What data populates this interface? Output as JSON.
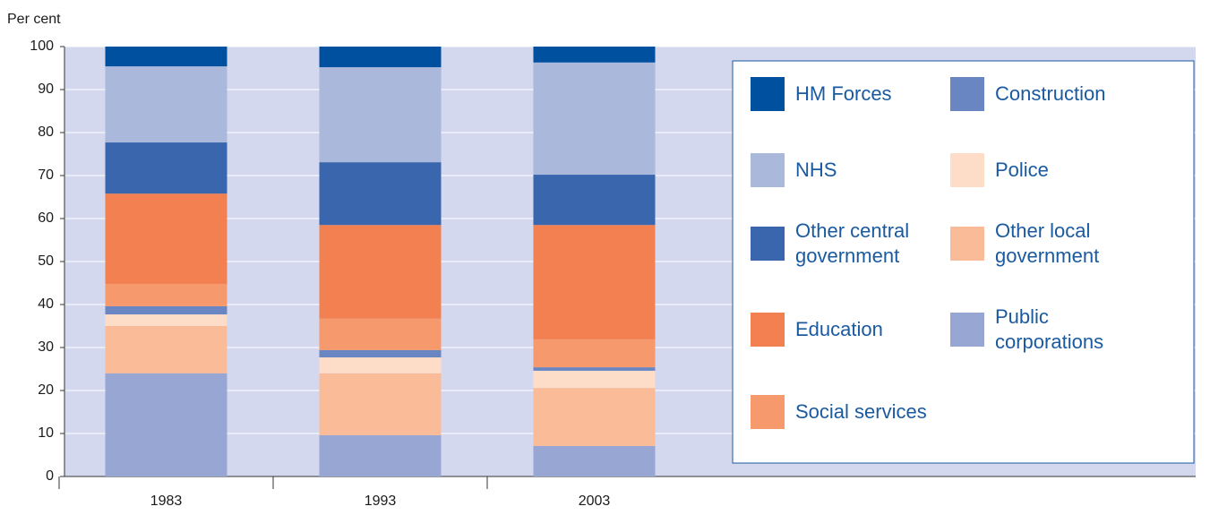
{
  "chart_data": {
    "type": "stacked_bar",
    "y_label": "Per cent",
    "categories": [
      "1983",
      "1993",
      "2003"
    ],
    "series": [
      {
        "name": "Public corporations",
        "color": "#97a6d2",
        "values": [
          24,
          9.6,
          7.1
        ]
      },
      {
        "name": "Other local government",
        "color": "#f9bb98",
        "values": [
          11,
          14.4,
          13.5
        ]
      },
      {
        "name": "Police",
        "color": "#fddcc8",
        "values": [
          2.7,
          3.7,
          4.0
        ]
      },
      {
        "name": "Construction",
        "color": "#6a86c2",
        "values": [
          1.9,
          1.7,
          0.8
        ]
      },
      {
        "name": "Social services",
        "color": "#f6996c",
        "values": [
          5.2,
          7.3,
          6.5
        ]
      },
      {
        "name": "Education",
        "color": "#f28050",
        "values": [
          21,
          21.8,
          26.6
        ]
      },
      {
        "name": "Other central government",
        "color": "#3a66ae",
        "values": [
          11.9,
          14.6,
          11.7
        ]
      },
      {
        "name": "NHS",
        "color": "#aab8dc",
        "values": [
          17.7,
          22.1,
          26.1
        ]
      },
      {
        "name": "HM Forces",
        "color": "#0050a0",
        "values": [
          4.6,
          4.8,
          3.7
        ]
      }
    ],
    "ylim": [
      0,
      100
    ],
    "yticks": [
      0,
      10,
      20,
      30,
      40,
      50,
      60,
      70,
      80,
      90,
      100
    ],
    "grid": true
  }
}
